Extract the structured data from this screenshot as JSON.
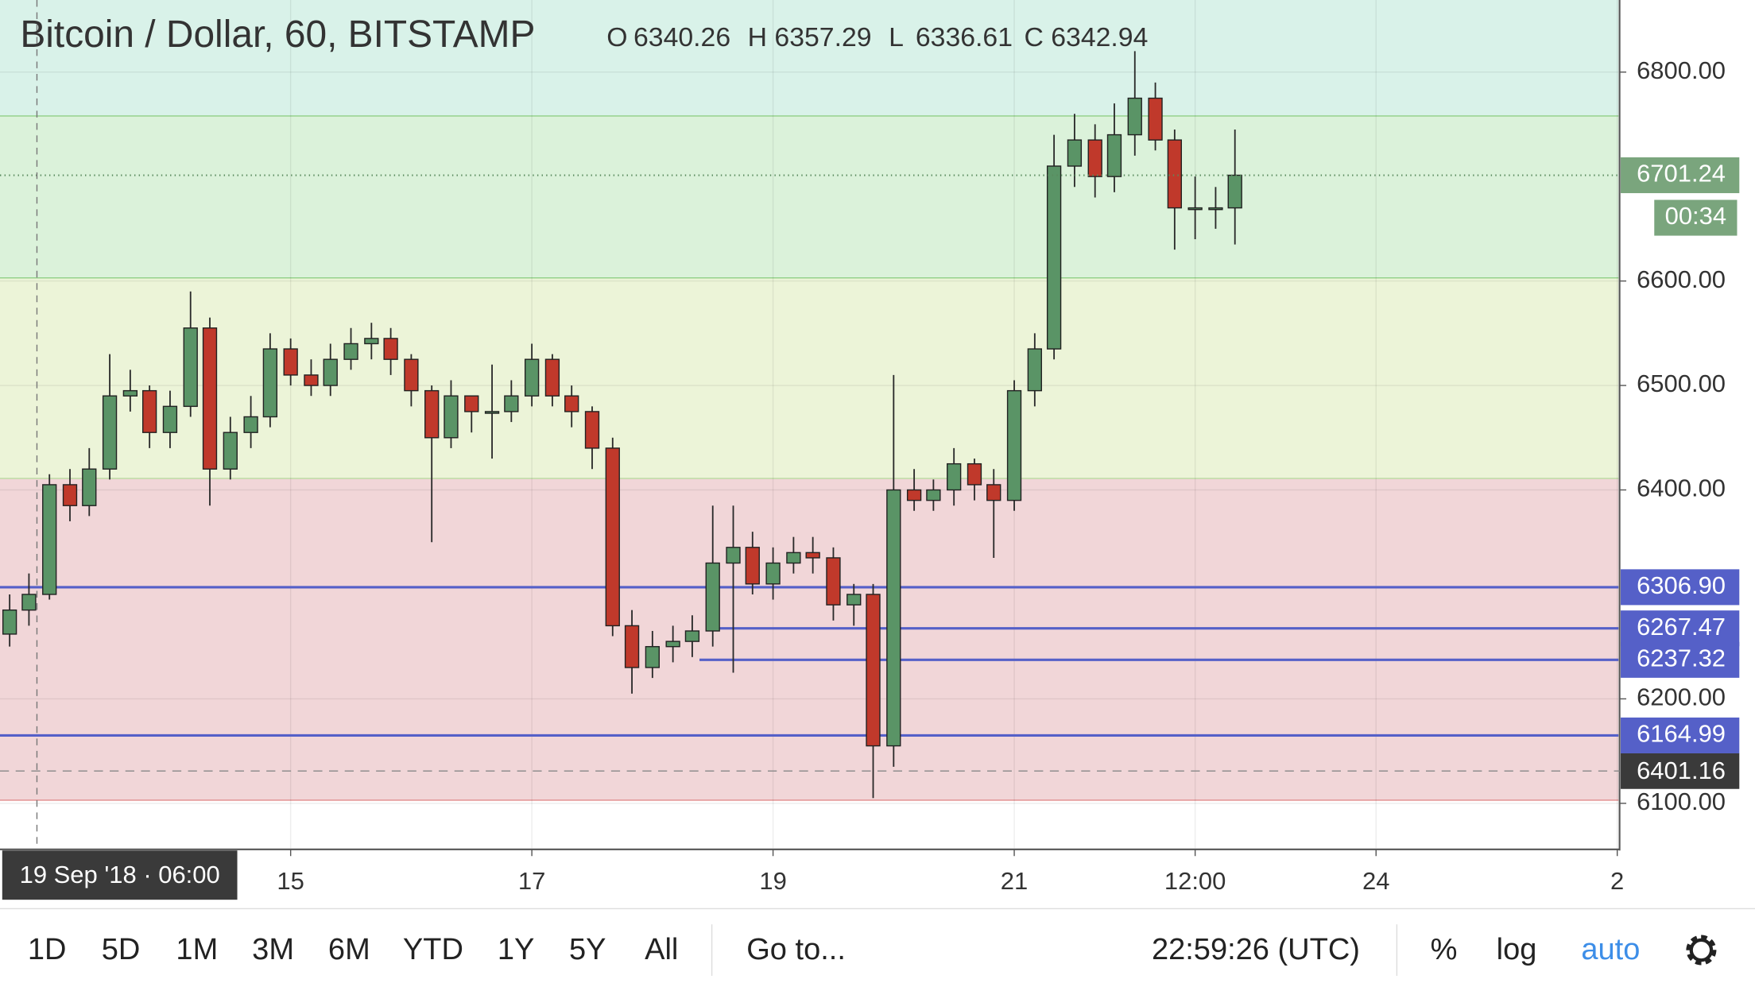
{
  "chart_data": {
    "type": "candlestick",
    "title": "Bitcoin / Dollar, 60, BITSTAMP",
    "ohlc": [
      {
        "key": "O",
        "value": 6340.26
      },
      {
        "key": "H",
        "value": 6357.29
      },
      {
        "key": "L",
        "value": 6336.61
      },
      {
        "key": "C",
        "value": 6342.94
      }
    ],
    "x": [
      12.67,
      12.83,
      13,
      13.17,
      13.33,
      13.5,
      13.67,
      13.83,
      14,
      14.17,
      14.33,
      14.5,
      14.67,
      14.83,
      15,
      15.17,
      15.33,
      15.5,
      15.67,
      15.83,
      16,
      16.17,
      16.33,
      16.5,
      16.67,
      16.83,
      17,
      17.17,
      17.33,
      17.5,
      17.67,
      17.83,
      18,
      18.17,
      18.33,
      18.5,
      18.67,
      18.83,
      19,
      19.17,
      19.33,
      19.5,
      19.67,
      19.83,
      20,
      20.17,
      20.33,
      20.5,
      20.67,
      20.83,
      21,
      21.17,
      21.33,
      21.5,
      21.67,
      21.83,
      22,
      22.17,
      22.33,
      22.5,
      22.67,
      22.83
    ],
    "open": [
      6262,
      6285,
      6300,
      6405,
      6385,
      6420,
      6490,
      6495,
      6455,
      6480,
      6555,
      6420,
      6455,
      6470,
      6535,
      6510,
      6500,
      6525,
      6540,
      6545,
      6525,
      6495,
      6450,
      6490,
      6475,
      6475,
      6490,
      6525,
      6490,
      6475,
      6440,
      6270,
      6230,
      6250,
      6255,
      6265,
      6330,
      6345,
      6310,
      6330,
      6340,
      6335,
      6290,
      6300,
      6155,
      6400,
      6390,
      6400,
      6425,
      6405,
      6390,
      6495,
      6535,
      6710,
      6735,
      6700,
      6740,
      6775,
      6735,
      6670,
      6670,
      6670
    ],
    "high": [
      6300,
      6320,
      6415,
      6420,
      6440,
      6530,
      6515,
      6500,
      6495,
      6590,
      6565,
      6470,
      6490,
      6550,
      6545,
      6525,
      6540,
      6555,
      6560,
      6555,
      6530,
      6500,
      6505,
      6490,
      6520,
      6505,
      6540,
      6530,
      6500,
      6480,
      6450,
      6285,
      6265,
      6270,
      6280,
      6385,
      6385,
      6360,
      6345,
      6355,
      6355,
      6345,
      6310,
      6310,
      6510,
      6420,
      6410,
      6440,
      6430,
      6420,
      6505,
      6550,
      6740,
      6760,
      6750,
      6770,
      6820,
      6790,
      6745,
      6700,
      6690,
      6745
    ],
    "low": [
      6250,
      6270,
      6295,
      6370,
      6375,
      6410,
      6475,
      6440,
      6440,
      6470,
      6385,
      6410,
      6440,
      6460,
      6500,
      6490,
      6490,
      6515,
      6525,
      6510,
      6480,
      6350,
      6440,
      6455,
      6430,
      6465,
      6480,
      6480,
      6460,
      6420,
      6260,
      6205,
      6220,
      6235,
      6240,
      6250,
      6225,
      6300,
      6295,
      6320,
      6320,
      6275,
      6270,
      6105,
      6135,
      6380,
      6380,
      6385,
      6390,
      6335,
      6380,
      6480,
      6525,
      6690,
      6680,
      6685,
      6720,
      6725,
      6630,
      6640,
      6650,
      6635
    ],
    "close": [
      6285,
      6300,
      6405,
      6385,
      6420,
      6490,
      6495,
      6455,
      6480,
      6555,
      6420,
      6455,
      6470,
      6535,
      6510,
      6500,
      6525,
      6540,
      6545,
      6525,
      6495,
      6450,
      6490,
      6475,
      6475,
      6490,
      6525,
      6490,
      6475,
      6440,
      6270,
      6230,
      6250,
      6255,
      6265,
      6330,
      6345,
      6310,
      6330,
      6340,
      6335,
      6290,
      6300,
      6155,
      6400,
      6390,
      6400,
      6425,
      6405,
      6390,
      6495,
      6535,
      6710,
      6735,
      6700,
      6740,
      6775,
      6735,
      6670,
      6670,
      6670,
      6701.24
    ],
    "up_color": "#5a9466",
    "down_color": "#c0392b",
    "wick_color": "#2a2a2a",
    "xlim": [
      12.59,
      26.01
    ],
    "xticks": [
      15,
      17,
      19,
      21,
      {
        "value": 22.5,
        "label": "12:00"
      },
      24,
      {
        "value": 26,
        "label": "2"
      }
    ],
    "ylim": [
      6057,
      6869
    ],
    "yticks": [
      {
        "value": 6100,
        "label": "6100.00"
      },
      {
        "value": 6200,
        "label": "6200.00"
      },
      {
        "value": 6400,
        "label": "6400.00"
      },
      {
        "value": 6500,
        "label": "6500.00"
      },
      {
        "value": 6600,
        "label": "6600.00"
      },
      {
        "value": 6800,
        "label": "6800.00"
      }
    ],
    "grid": true,
    "zones": [
      {
        "from": 6103,
        "to": 6411,
        "color": "#f1d6d8",
        "line_color": "#e08a8a"
      },
      {
        "from": 6411,
        "to": 6603,
        "color": "#ecf4d8",
        "line_color": "#b9dba0"
      },
      {
        "from": 6603,
        "to": 6758,
        "color": "#dbf2da",
        "line_color": "#8fcf86"
      },
      {
        "from": 6758,
        "to": 6869,
        "color": "#d9f2e9",
        "line_color": "#8fcf86"
      }
    ],
    "levels_color": "#5560c8",
    "levels": [
      {
        "value": 6306.9,
        "label": "6306.90",
        "from": 12.59
      },
      {
        "value": 6267.47,
        "label": "6267.47",
        "from": 18.48
      },
      {
        "value": 6237.32,
        "label": "6237.32",
        "from": 18.39
      },
      {
        "value": 6164.99,
        "label": "6164.99",
        "from": 12.59
      }
    ],
    "last": {
      "value": 6701.24,
      "countdown": "00:34",
      "color": "#7aa57d"
    },
    "crosshair": {
      "price_label": "6401.16",
      "time_label": "19 Sep '18 · 06:00"
    },
    "toolbar": {
      "ranges": [
        "1D",
        "5D",
        "1M",
        "3M",
        "6M",
        "YTD",
        "1Y",
        "5Y",
        "All"
      ],
      "goto": "Go to...",
      "clock": "22:59:26 (UTC)",
      "options": [
        "%",
        "log",
        "auto"
      ]
    }
  }
}
